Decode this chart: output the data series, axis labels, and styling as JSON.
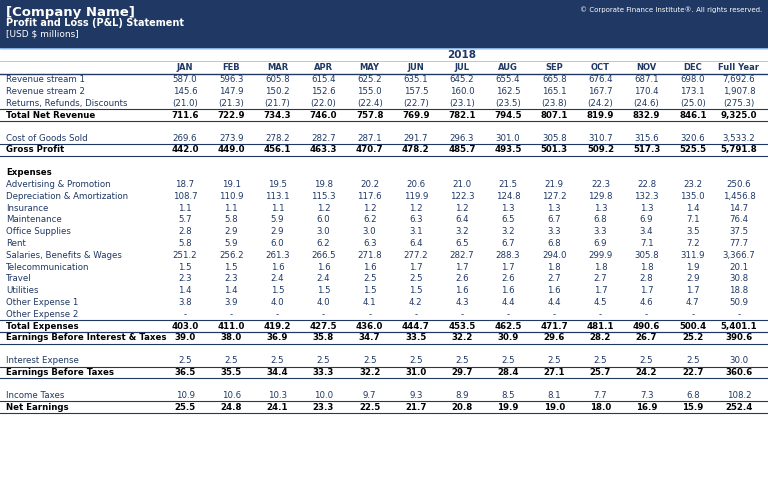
{
  "title_company": "[Company Name]",
  "title_statement": "Profit and Loss (P&L) Statement",
  "title_units": "[USD $ millions]",
  "title_year": "2018",
  "copyright": "© Corporate Finance Institute®. All rights reserved.",
  "header_bg": "#1f3864",
  "col_headers": [
    "JAN",
    "FEB",
    "MAR",
    "APR",
    "MAY",
    "JUN",
    "JUL",
    "AUG",
    "SEP",
    "OCT",
    "NOV",
    "DEC",
    "Full Year"
  ],
  "rows": [
    {
      "label": "Revenue stream 1",
      "values": [
        "587.0",
        "596.3",
        "605.8",
        "615.4",
        "625.2",
        "635.1",
        "645.2",
        "655.4",
        "665.8",
        "676.4",
        "687.1",
        "698.0",
        "7,692.6"
      ],
      "type": "normal"
    },
    {
      "label": "Revenue stream 2",
      "values": [
        "145.6",
        "147.9",
        "150.2",
        "152.6",
        "155.0",
        "157.5",
        "160.0",
        "162.5",
        "165.1",
        "167.7",
        "170.4",
        "173.1",
        "1,907.8"
      ],
      "type": "normal"
    },
    {
      "label": "Returns, Refunds, Discounts",
      "values": [
        "(21.0)",
        "(21.3)",
        "(21.7)",
        "(22.0)",
        "(22.4)",
        "(22.7)",
        "(23.1)",
        "(23.5)",
        "(23.8)",
        "(24.2)",
        "(24.6)",
        "(25.0)",
        "(275.3)"
      ],
      "type": "normal"
    },
    {
      "label": "Total Net Revenue",
      "values": [
        "711.6",
        "722.9",
        "734.3",
        "746.0",
        "757.8",
        "769.9",
        "782.1",
        "794.5",
        "807.1",
        "819.9",
        "832.9",
        "846.1",
        "9,325.0"
      ],
      "type": "total"
    },
    {
      "label": "",
      "values": [],
      "type": "spacer"
    },
    {
      "label": "",
      "values": [],
      "type": "spacer"
    },
    {
      "label": "Cost of Goods Sold",
      "values": [
        "269.6",
        "273.9",
        "278.2",
        "282.7",
        "287.1",
        "291.7",
        "296.3",
        "301.0",
        "305.8",
        "310.7",
        "315.6",
        "320.6",
        "3,533.2"
      ],
      "type": "normal"
    },
    {
      "label": "Gross Profit",
      "values": [
        "442.0",
        "449.0",
        "456.1",
        "463.3",
        "470.7",
        "478.2",
        "485.7",
        "493.5",
        "501.3",
        "509.2",
        "517.3",
        "525.5",
        "5,791.8"
      ],
      "type": "total"
    },
    {
      "label": "",
      "values": [],
      "type": "spacer"
    },
    {
      "label": "",
      "values": [],
      "type": "spacer"
    },
    {
      "label": "Expenses",
      "values": [],
      "type": "section_header"
    },
    {
      "label": "Advertising & Promotion",
      "values": [
        "18.7",
        "19.1",
        "19.5",
        "19.8",
        "20.2",
        "20.6",
        "21.0",
        "21.5",
        "21.9",
        "22.3",
        "22.8",
        "23.2",
        "250.6"
      ],
      "type": "normal"
    },
    {
      "label": "Depreciation & Amortization",
      "values": [
        "108.7",
        "110.9",
        "113.1",
        "115.3",
        "117.6",
        "119.9",
        "122.3",
        "124.8",
        "127.2",
        "129.8",
        "132.3",
        "135.0",
        "1,456.8"
      ],
      "type": "normal"
    },
    {
      "label": "Insurance",
      "values": [
        "1.1",
        "1.1",
        "1.1",
        "1.2",
        "1.2",
        "1.2",
        "1.2",
        "1.3",
        "1.3",
        "1.3",
        "1.3",
        "1.4",
        "14.7"
      ],
      "type": "normal"
    },
    {
      "label": "Maintenance",
      "values": [
        "5.7",
        "5.8",
        "5.9",
        "6.0",
        "6.2",
        "6.3",
        "6.4",
        "6.5",
        "6.7",
        "6.8",
        "6.9",
        "7.1",
        "76.4"
      ],
      "type": "normal"
    },
    {
      "label": "Office Supplies",
      "values": [
        "2.8",
        "2.9",
        "2.9",
        "3.0",
        "3.0",
        "3.1",
        "3.2",
        "3.2",
        "3.3",
        "3.3",
        "3.4",
        "3.5",
        "37.5"
      ],
      "type": "normal"
    },
    {
      "label": "Rent",
      "values": [
        "5.8",
        "5.9",
        "6.0",
        "6.2",
        "6.3",
        "6.4",
        "6.5",
        "6.7",
        "6.8",
        "6.9",
        "7.1",
        "7.2",
        "77.7"
      ],
      "type": "normal"
    },
    {
      "label": "Salaries, Benefits & Wages",
      "values": [
        "251.2",
        "256.2",
        "261.3",
        "266.5",
        "271.8",
        "277.2",
        "282.7",
        "288.3",
        "294.0",
        "299.9",
        "305.8",
        "311.9",
        "3,366.7"
      ],
      "type": "normal"
    },
    {
      "label": "Telecommunication",
      "values": [
        "1.5",
        "1.5",
        "1.6",
        "1.6",
        "1.6",
        "1.7",
        "1.7",
        "1.7",
        "1.8",
        "1.8",
        "1.8",
        "1.9",
        "20.1"
      ],
      "type": "normal"
    },
    {
      "label": "Travel",
      "values": [
        "2.3",
        "2.3",
        "2.4",
        "2.4",
        "2.5",
        "2.5",
        "2.6",
        "2.6",
        "2.7",
        "2.7",
        "2.8",
        "2.9",
        "30.8"
      ],
      "type": "normal"
    },
    {
      "label": "Utilities",
      "values": [
        "1.4",
        "1.4",
        "1.5",
        "1.5",
        "1.5",
        "1.5",
        "1.6",
        "1.6",
        "1.6",
        "1.7",
        "1.7",
        "1.7",
        "18.8"
      ],
      "type": "normal"
    },
    {
      "label": "Other Expense 1",
      "values": [
        "3.8",
        "3.9",
        "4.0",
        "4.0",
        "4.1",
        "4.2",
        "4.3",
        "4.4",
        "4.4",
        "4.5",
        "4.6",
        "4.7",
        "50.9"
      ],
      "type": "normal"
    },
    {
      "label": "Other Expense 2",
      "values": [
        "-",
        "-",
        "-",
        "-",
        "-",
        "-",
        "-",
        "-",
        "-",
        "-",
        "-",
        "-",
        "-"
      ],
      "type": "normal"
    },
    {
      "label": "Total Expenses",
      "values": [
        "403.0",
        "411.0",
        "419.2",
        "427.5",
        "436.0",
        "444.7",
        "453.5",
        "462.5",
        "471.7",
        "481.1",
        "490.6",
        "500.4",
        "5,401.1"
      ],
      "type": "total"
    },
    {
      "label": "Earnings Before Interest & Taxes",
      "values": [
        "39.0",
        "38.0",
        "36.9",
        "35.8",
        "34.7",
        "33.5",
        "32.2",
        "30.9",
        "29.6",
        "28.2",
        "26.7",
        "25.2",
        "390.6"
      ],
      "type": "total"
    },
    {
      "label": "",
      "values": [],
      "type": "spacer"
    },
    {
      "label": "",
      "values": [],
      "type": "spacer"
    },
    {
      "label": "Interest Expense",
      "values": [
        "2.5",
        "2.5",
        "2.5",
        "2.5",
        "2.5",
        "2.5",
        "2.5",
        "2.5",
        "2.5",
        "2.5",
        "2.5",
        "2.5",
        "30.0"
      ],
      "type": "normal"
    },
    {
      "label": "Earnings Before Taxes",
      "values": [
        "36.5",
        "35.5",
        "34.4",
        "33.3",
        "32.2",
        "31.0",
        "29.7",
        "28.4",
        "27.1",
        "25.7",
        "24.2",
        "22.7",
        "360.6"
      ],
      "type": "total"
    },
    {
      "label": "",
      "values": [],
      "type": "spacer"
    },
    {
      "label": "",
      "values": [],
      "type": "spacer"
    },
    {
      "label": "Income Taxes",
      "values": [
        "10.9",
        "10.6",
        "10.3",
        "10.0",
        "9.7",
        "9.3",
        "8.9",
        "8.5",
        "8.1",
        "7.7",
        "7.3",
        "6.8",
        "108.2"
      ],
      "type": "normal"
    },
    {
      "label": "Net Earnings",
      "values": [
        "25.5",
        "24.8",
        "24.1",
        "23.3",
        "22.5",
        "21.7",
        "20.8",
        "19.9",
        "19.0",
        "18.0",
        "16.9",
        "15.9",
        "252.4"
      ],
      "type": "total"
    }
  ],
  "normal_color": "#1f3864",
  "total_color": "#000000",
  "section_color": "#000000",
  "bg_color": "#ffffff",
  "header_bg_color": "#1f3864",
  "line_color": "#1f3864",
  "year_line_color": "#8eb4e3"
}
